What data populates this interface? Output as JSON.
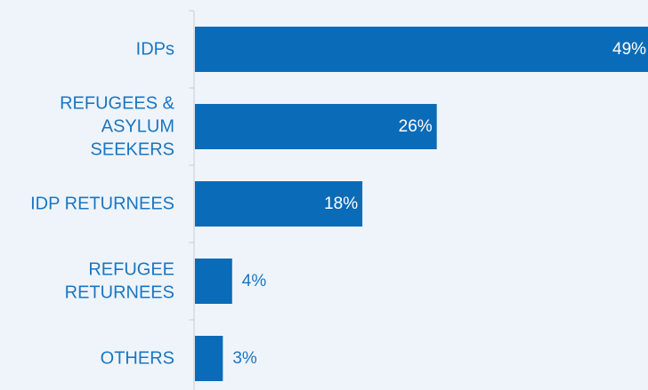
{
  "chart_data": {
    "type": "bar",
    "orientation": "horizontal",
    "categories": [
      "IDPs",
      "REFUGEES & ASYLUM SEEKERS",
      "IDP RETURNEES",
      "REFUGEE RETURNEES",
      "OTHERS"
    ],
    "values": [
      49,
      26,
      18,
      4,
      3
    ],
    "value_labels": [
      "49%",
      "26%",
      "18%",
      "4%",
      "3%"
    ],
    "unit": "%",
    "title": "",
    "xlabel": "",
    "ylabel": "",
    "grid": false,
    "legend": "none"
  },
  "colors": {
    "background": "#eff4fb",
    "bar": "#0a6cb8",
    "label_text": "#1a76c2",
    "value_text_inside": "#ffffff",
    "value_text_outside": "#1a76c2",
    "axis_line": "#c8ccd2"
  }
}
